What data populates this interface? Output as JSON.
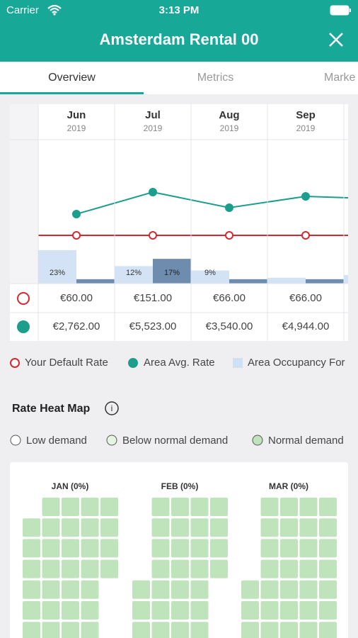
{
  "status_bar": {
    "carrier": "Carrier",
    "time": "3:13 PM"
  },
  "header": {
    "title": "Amsterdam Rental 00"
  },
  "tabs": [
    "Overview",
    "Metrics",
    "Marke"
  ],
  "rate_chart": {
    "months": [
      {
        "month": "Jun",
        "year": "2019",
        "default_rate": "€60.00",
        "avg_rate": "€2,762.00",
        "occupancy": 23,
        "occupancy_label": "23%",
        "own_occupancy": 3
      },
      {
        "month": "Jul",
        "year": "2019",
        "default_rate": "€151.00",
        "avg_rate": "€5,523.00",
        "occupancy": 12,
        "occupancy_label": "12%",
        "own_occupancy": 17,
        "own_occupancy_label": "17%"
      },
      {
        "month": "Aug",
        "year": "2019",
        "default_rate": "€66.00",
        "avg_rate": "€3,540.00",
        "occupancy": 9,
        "occupancy_label": "9%",
        "own_occupancy": 3
      },
      {
        "month": "Sep",
        "year": "2019",
        "default_rate": "€66.00",
        "avg_rate": "€4,944.00",
        "occupancy": 4,
        "own_occupancy": 3
      }
    ],
    "legend": [
      "Your Default Rate",
      "Area Avg. Rate",
      "Area Occupancy For"
    ]
  },
  "heat_map": {
    "title": "Rate Heat Map",
    "legend": [
      "Low demand",
      "Below normal demand",
      "Normal demand"
    ],
    "months": [
      "JAN (0%)",
      "FEB (0%)",
      "MAR (0%)"
    ]
  }
}
